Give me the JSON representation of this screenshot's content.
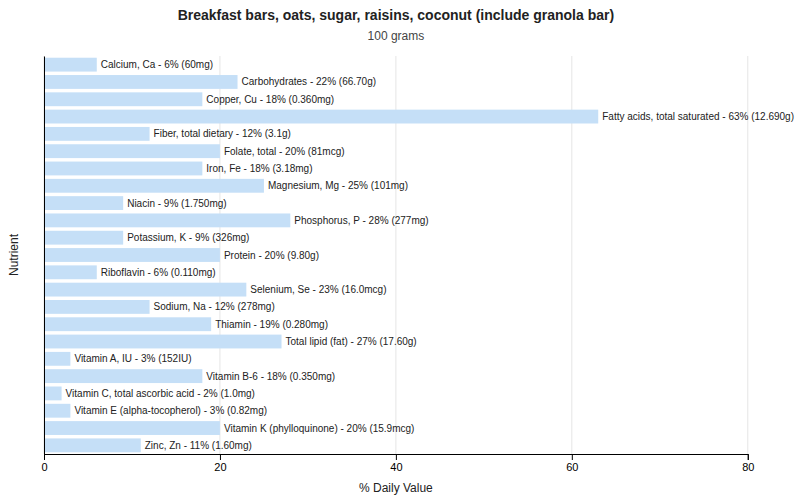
{
  "chart_data": {
    "type": "bar",
    "orientation": "horizontal",
    "title": "Breakfast bars, oats, sugar, raisins, coconut (include granola bar)",
    "subtitle": "100 grams",
    "xlabel": "% Daily Value",
    "ylabel": "Nutrient",
    "categories": [
      "Calcium, Ca - 6% (60mg)",
      "Carbohydrates - 22% (66.70g)",
      "Copper, Cu - 18% (0.360mg)",
      "Fatty acids, total saturated - 63% (12.690g)",
      "Fiber, total dietary - 12% (3.1g)",
      "Folate, total - 20% (81mcg)",
      "Iron, Fe - 18% (3.18mg)",
      "Magnesium, Mg - 25% (101mg)",
      "Niacin - 9% (1.750mg)",
      "Phosphorus, P - 28% (277mg)",
      "Potassium, K - 9% (326mg)",
      "Protein - 20% (9.80g)",
      "Riboflavin - 6% (0.110mg)",
      "Selenium, Se - 23% (16.0mcg)",
      "Sodium, Na - 12% (278mg)",
      "Thiamin - 19% (0.280mg)",
      "Total lipid (fat) - 27% (17.60g)",
      "Vitamin A, IU - 3% (152IU)",
      "Vitamin B-6 - 18% (0.350mg)",
      "Vitamin C, total ascorbic acid - 2% (1.0mg)",
      "Vitamin E (alpha-tocopherol) - 3% (0.82mg)",
      "Vitamin K (phylloquinone) - 20% (15.9mcg)",
      "Zinc, Zn - 11% (1.60mg)"
    ],
    "values": [
      6,
      22,
      18,
      63,
      12,
      20,
      18,
      25,
      9,
      28,
      9,
      20,
      6,
      23,
      12,
      19,
      27,
      3,
      18,
      2,
      3,
      20,
      11
    ],
    "color": "#c5dff7",
    "xlim": [
      0,
      80
    ],
    "xticks": [
      0,
      20,
      40,
      60,
      80
    ],
    "grid": true,
    "tick_labels": "x"
  }
}
